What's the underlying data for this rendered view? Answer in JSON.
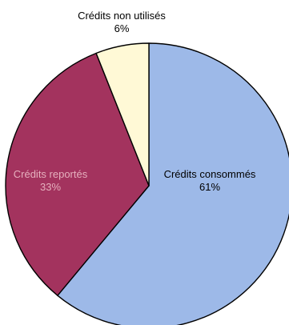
{
  "chart_data": {
    "type": "pie",
    "title": "",
    "slices": [
      {
        "label": "Crédits consommés",
        "percent_label": "61%",
        "value": 61,
        "color": "#9DB9E8",
        "text_color": "#000000"
      },
      {
        "label": "Crédits reportés",
        "percent_label": "33%",
        "value": 33,
        "color": "#A3335E",
        "text_color": "#E6B0BE"
      },
      {
        "label": "Crédits non utilisés",
        "percent_label": "6%",
        "value": 6,
        "color": "#FFF9D6",
        "text_color": "#000000"
      }
    ],
    "start": "top, clockwise",
    "legend": "none"
  }
}
